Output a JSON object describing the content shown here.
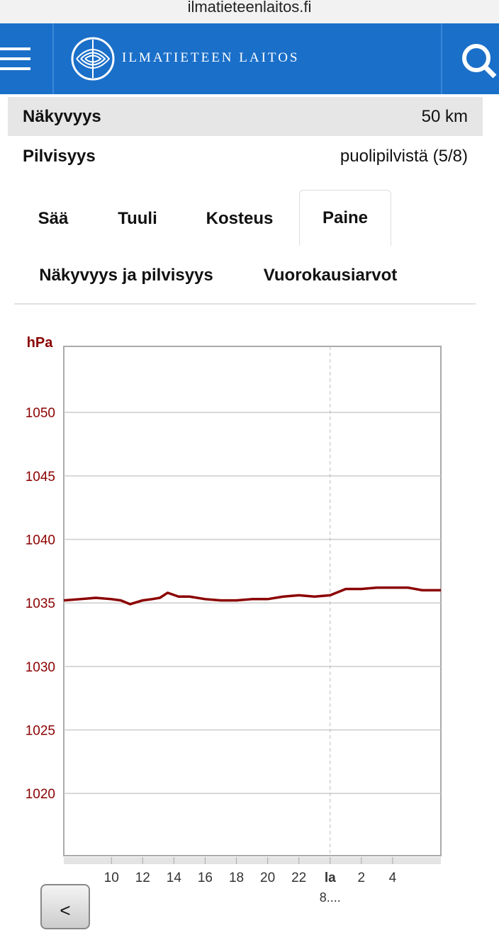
{
  "browser": {
    "url": "ilmatieteenlaitos.fi"
  },
  "header": {
    "logo_text": "ILMATIETEEN LAITOS"
  },
  "info_rows": [
    {
      "label": "Näkyvyys",
      "value": "50 km"
    },
    {
      "label": "Pilvisyys",
      "value": "puolipilvistä (5/8)"
    }
  ],
  "tabs": [
    "Sää",
    "Tuuli",
    "Kosteus",
    "Paine",
    "Näkyvyys ja pilvisyys",
    "Vuorokausiarvot"
  ],
  "active_tab": 3,
  "chart_data": {
    "type": "line",
    "y_label": "hPa",
    "x_sublabel": "8....",
    "day_separator": 24,
    "xlim": [
      6.95,
      31.09
    ],
    "xticks": [
      10,
      12,
      14,
      16,
      18,
      20,
      22,
      {
        "value": 24,
        "label": "la"
      },
      {
        "value": 26,
        "label": "2"
      },
      {
        "value": 28,
        "label": "4"
      }
    ],
    "ylim": [
      1015.1,
      1055.2
    ],
    "yticks": [
      1020,
      1025,
      1030,
      1035,
      1040,
      1045,
      1050
    ],
    "grid": true,
    "x": [
      6.95,
      8,
      9,
      10,
      10.6,
      11.2,
      12,
      12.6,
      13.1,
      13.6,
      14.3,
      15,
      16,
      17,
      18,
      19,
      20,
      21,
      22,
      23,
      24,
      25,
      26,
      27,
      28,
      29,
      29.9,
      31.09
    ],
    "series": [
      {
        "color": "#8b0000",
        "values": [
          1035.2,
          1035.3,
          1035.4,
          1035.3,
          1035.2,
          1034.9,
          1035.2,
          1035.3,
          1035.4,
          1035.8,
          1035.5,
          1035.5,
          1035.3,
          1035.2,
          1035.2,
          1035.3,
          1035.3,
          1035.5,
          1035.6,
          1035.5,
          1035.6,
          1036.1,
          1036.1,
          1036.2,
          1036.2,
          1036.2,
          1036.0,
          1036.0
        ]
      }
    ]
  },
  "nav": {
    "prev": "<"
  }
}
